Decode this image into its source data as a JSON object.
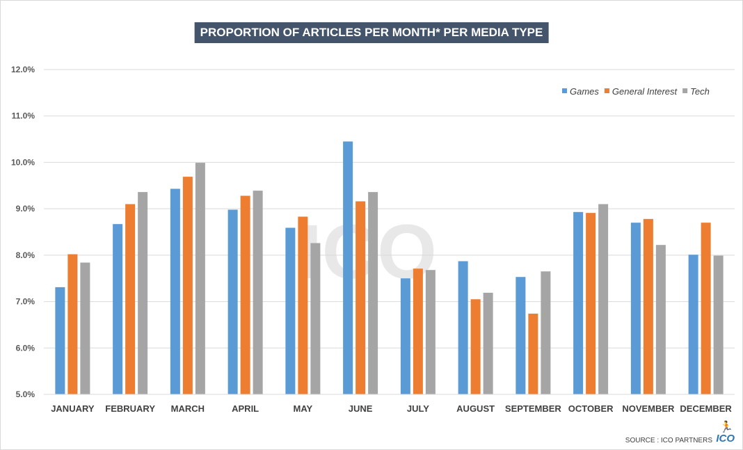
{
  "title": "PROPORTION OF ARTICLES PER MONTH* PER MEDIA TYPE",
  "source": "SOURCE : ICO PARTNERS",
  "logo_text": "ICO",
  "chart_data": {
    "type": "bar",
    "title": "PROPORTION OF ARTICLES PER MONTH* PER MEDIA TYPE",
    "xlabel": "",
    "ylabel": "",
    "ylim": [
      5.0,
      12.0
    ],
    "yticks": [
      "5.0%",
      "6.0%",
      "7.0%",
      "8.0%",
      "9.0%",
      "10.0%",
      "11.0%",
      "12.0%"
    ],
    "grid": true,
    "legend_position": "top-right",
    "categories": [
      "JANUARY",
      "FEBRUARY",
      "MARCH",
      "APRIL",
      "MAY",
      "JUNE",
      "JULY",
      "AUGUST",
      "SEPTEMBER",
      "OCTOBER",
      "NOVEMBER",
      "DECEMBER"
    ],
    "series": [
      {
        "name": "Games",
        "color": "#5b9bd5",
        "values": [
          7.31,
          8.67,
          9.43,
          8.98,
          8.59,
          10.45,
          7.5,
          7.87,
          7.53,
          8.93,
          8.7,
          8.01
        ]
      },
      {
        "name": "General Interest",
        "color": "#ed7d31",
        "values": [
          8.02,
          9.1,
          9.69,
          9.28,
          8.83,
          9.16,
          7.71,
          7.05,
          6.74,
          8.91,
          8.78,
          8.7
        ]
      },
      {
        "name": "Tech",
        "color": "#a5a5a5",
        "values": [
          7.84,
          9.36,
          9.99,
          9.39,
          8.26,
          9.36,
          7.68,
          7.19,
          7.65,
          9.1,
          8.22,
          7.99
        ]
      }
    ]
  }
}
